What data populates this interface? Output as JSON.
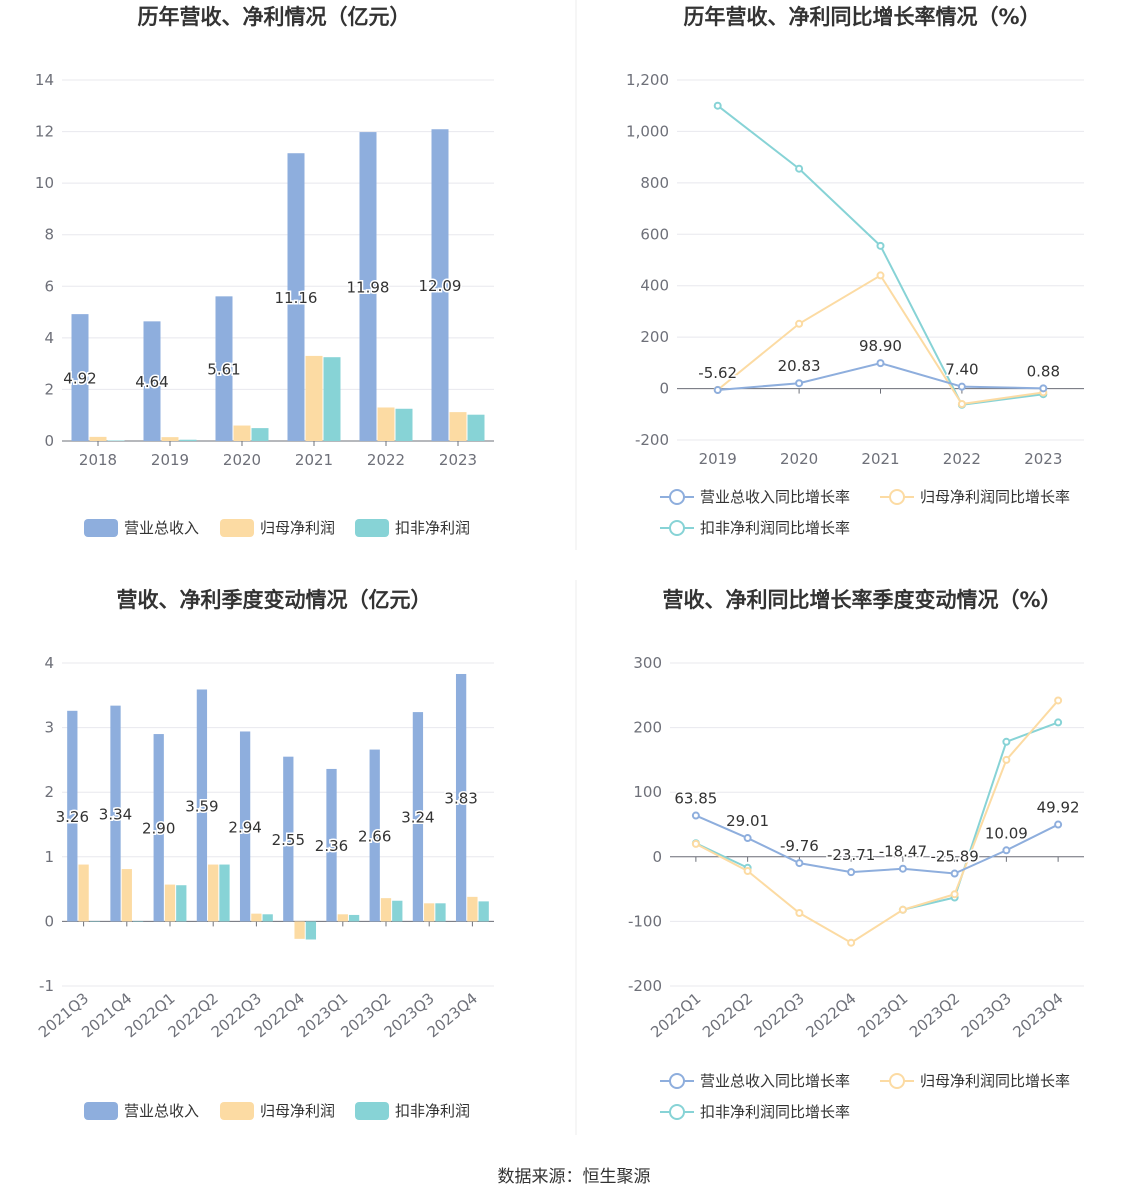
{
  "source": "数据来源：恒生聚源",
  "colors": {
    "revenue": "#8eaedd",
    "net": "#fcdba3",
    "deducted": "#87d3d6"
  },
  "chart_data": [
    {
      "type": "bar",
      "title": "历年营收、净利情况（亿元）",
      "categories": [
        "2018",
        "2019",
        "2020",
        "2021",
        "2022",
        "2023"
      ],
      "ylim": [
        0,
        14
      ],
      "yticks": [
        "0",
        "2",
        "4",
        "6",
        "8",
        "10",
        "12",
        "14"
      ],
      "series": [
        {
          "name": "营业总收入",
          "values": [
            4.92,
            4.64,
            5.61,
            11.16,
            11.98,
            12.09
          ],
          "labels": [
            "4.92",
            "4.64",
            "5.61",
            "11.16",
            "11.98",
            "12.09"
          ]
        },
        {
          "name": "归母净利润",
          "values": [
            0.16,
            0.15,
            0.6,
            3.3,
            1.3,
            1.12
          ]
        },
        {
          "name": "扣非净利润",
          "values": [
            0.02,
            0.05,
            0.5,
            3.25,
            1.25,
            1.02
          ]
        }
      ],
      "legend": "bottom"
    },
    {
      "type": "line",
      "title": "历年营收、净利同比增长率情况（%）",
      "categories": [
        "2019",
        "2020",
        "2021",
        "2022",
        "2023"
      ],
      "ylim": [
        -200,
        1200
      ],
      "yticks": [
        "-200",
        "0",
        "200",
        "400",
        "600",
        "800",
        "1,000",
        "1,200"
      ],
      "series": [
        {
          "name": "营业总收入同比增长率",
          "values": [
            -5.62,
            20.83,
            98.9,
            7.4,
            0.88
          ],
          "labels": [
            "-5.62",
            "20.83",
            "98.90",
            "7.40",
            "0.88"
          ]
        },
        {
          "name": "归母净利润同比增长率",
          "values": [
            -5,
            252,
            440,
            -60,
            -15
          ]
        },
        {
          "name": "扣非净利润同比增长率",
          "values": [
            1100,
            855,
            555,
            -63,
            -22
          ]
        }
      ],
      "legend": "bottom"
    },
    {
      "type": "bar",
      "title": "营收、净利季度变动情况（亿元）",
      "categories": [
        "2021Q3",
        "2021Q4",
        "2022Q1",
        "2022Q2",
        "2022Q3",
        "2022Q4",
        "2023Q1",
        "2023Q2",
        "2023Q3",
        "2023Q4"
      ],
      "ylim": [
        -1,
        4
      ],
      "yticks": [
        "-1",
        "0",
        "1",
        "2",
        "3",
        "4"
      ],
      "series": [
        {
          "name": "营业总收入",
          "values": [
            3.26,
            3.34,
            2.9,
            3.59,
            2.94,
            2.55,
            2.36,
            2.66,
            3.24,
            3.83
          ],
          "labels": [
            "3.26",
            "3.34",
            "2.90",
            "3.59",
            "2.94",
            "2.55",
            "2.36",
            "2.66",
            "3.24",
            "3.83"
          ]
        },
        {
          "name": "归母净利润",
          "values": [
            0.88,
            0.81,
            0.57,
            0.88,
            0.12,
            -0.27,
            0.11,
            0.36,
            0.28,
            0.38
          ]
        },
        {
          "name": "扣非净利润",
          "values": null,
          "values_list": [
            0.0,
            0.0,
            0.56,
            0.88,
            0.11,
            -0.28,
            0.1,
            0.32,
            0.28,
            0.31
          ]
        }
      ],
      "legend": "bottom"
    },
    {
      "type": "line",
      "title": "营收、净利同比增长率季度变动情况（%）",
      "categories": [
        "2022Q1",
        "2022Q2",
        "2022Q3",
        "2022Q4",
        "2023Q1",
        "2023Q2",
        "2023Q3",
        "2023Q4"
      ],
      "ylim": [
        -200,
        300
      ],
      "yticks": [
        "-200",
        "-100",
        "0",
        "100",
        "200",
        "300"
      ],
      "series": [
        {
          "name": "营业总收入同比增长率",
          "values": [
            63.85,
            29.01,
            -9.76,
            -23.71,
            -18.47,
            -25.89,
            10.09,
            49.92
          ],
          "labels": [
            "63.85",
            "29.01",
            "-9.76",
            "-23.71",
            "-18.47",
            "-25.89",
            "10.09",
            "49.92"
          ]
        },
        {
          "name": "归母净利润同比增长率",
          "values": [
            20,
            -22,
            -87,
            -133,
            -82,
            -58,
            150,
            242
          ]
        },
        {
          "name": "扣非净利润同比增长率",
          "values": [
            21,
            -17,
            null,
            null,
            -82,
            -63,
            178,
            208
          ]
        }
      ],
      "legend": "bottom"
    }
  ]
}
